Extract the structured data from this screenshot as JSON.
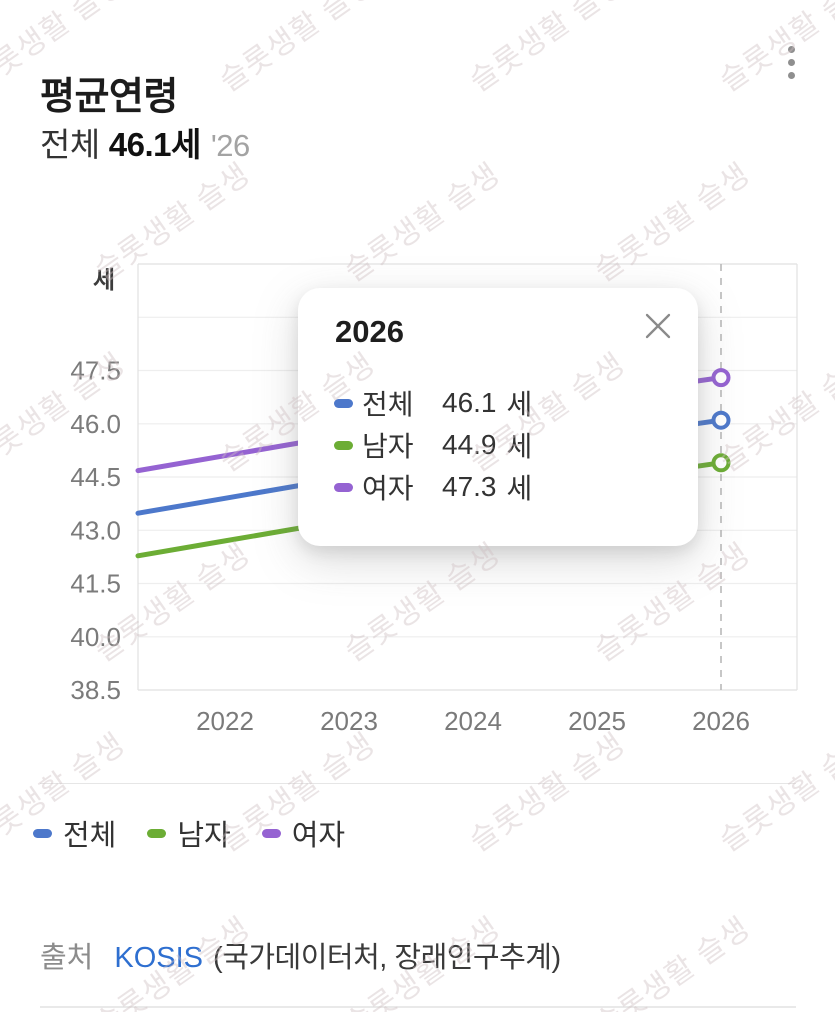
{
  "header": {
    "title": "평균연령"
  },
  "summary": {
    "label": "전체",
    "value": "46.1세",
    "year": "'26"
  },
  "chart_data": {
    "type": "line",
    "unit_label": "세",
    "x": [
      2022,
      2023,
      2024,
      2025,
      2026
    ],
    "x_tick_labels": [
      "2022",
      "2023",
      "2024",
      "2025",
      "2026"
    ],
    "series": [
      {
        "key": "total",
        "name": "전체",
        "color": "#4d78cb",
        "values": [
          43.9,
          44.5,
          45.0,
          45.6,
          46.1
        ]
      },
      {
        "key": "male",
        "name": "남자",
        "color": "#6cad35",
        "values": [
          42.7,
          43.3,
          43.8,
          44.4,
          44.9
        ]
      },
      {
        "key": "female",
        "name": "여자",
        "color": "#9563d2",
        "values": [
          45.1,
          45.7,
          46.2,
          46.8,
          47.3
        ]
      }
    ],
    "ylim": [
      38.5,
      50.5
    ],
    "y_ticks": [
      47.5,
      46.0,
      44.5,
      43.0,
      41.5,
      40.0,
      38.5
    ],
    "grid": true,
    "highlight_year": 2026,
    "legend_position": "bottom"
  },
  "tooltip": {
    "year": "2026",
    "rows": [
      {
        "label": "전체",
        "value": "46.1",
        "unit": "세"
      },
      {
        "label": "남자",
        "value": "44.9",
        "unit": "세"
      },
      {
        "label": "여자",
        "value": "47.3",
        "unit": "세"
      }
    ]
  },
  "source": {
    "prefix": "출처",
    "link": "KOSIS",
    "detail": "(국가데이터처, 장래인구추계)"
  },
  "watermark": {
    "text": "슬롯생활 슬생"
  }
}
